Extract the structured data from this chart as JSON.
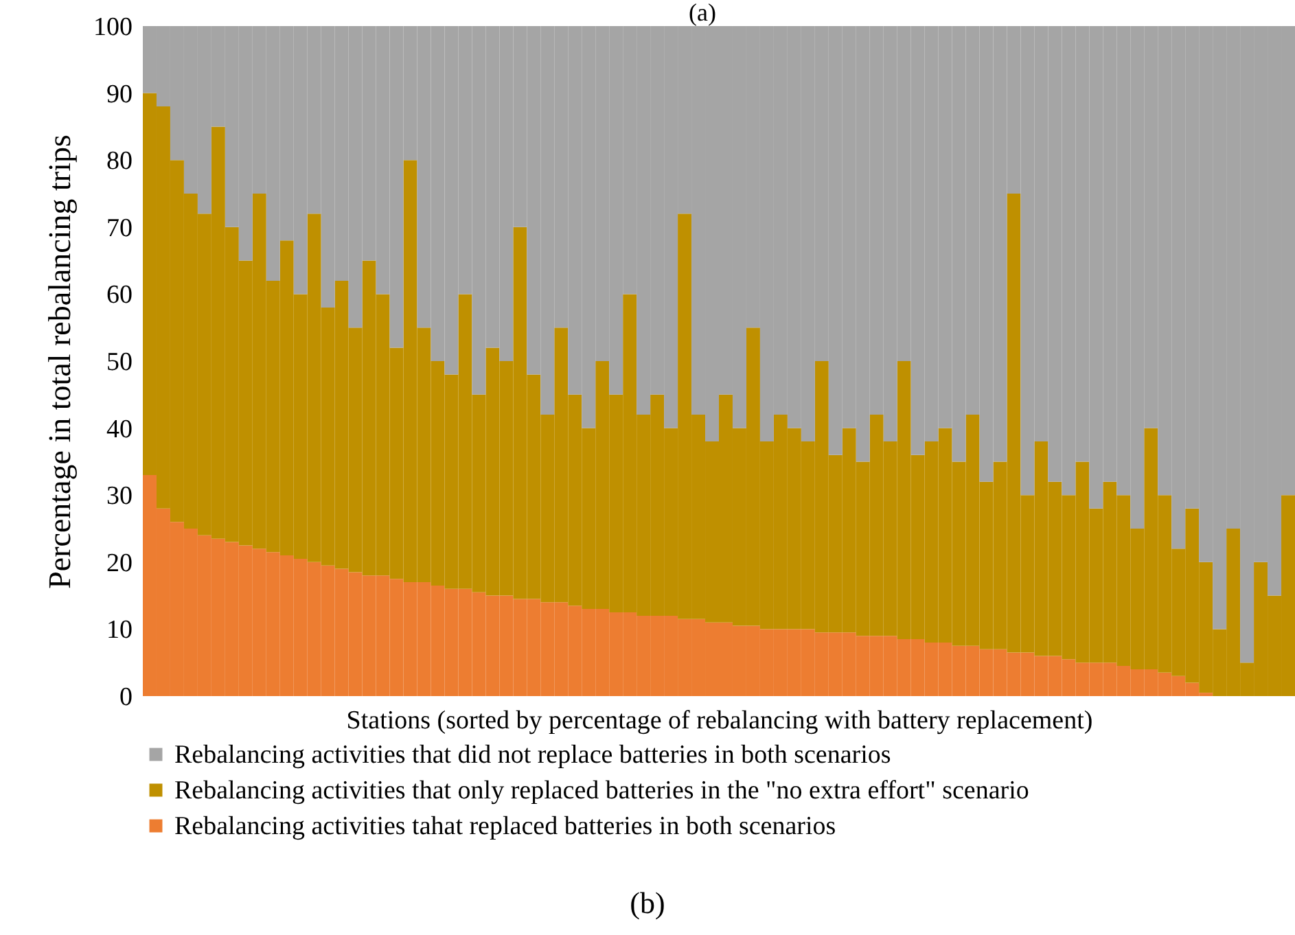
{
  "chart_data": {
    "type": "bar",
    "stacked": true,
    "xlabel": "Stations (sorted by percentage of rebalancing with battery replacement)",
    "ylabel": "Percentage in total rebalancing trips",
    "categories": [
      null,
      null,
      null,
      null,
      null,
      null,
      null,
      null,
      null,
      null,
      null,
      null,
      null,
      null,
      null,
      null,
      null,
      null,
      null,
      null,
      null,
      null,
      null,
      null,
      null,
      null,
      null,
      null,
      null,
      null,
      null,
      null,
      null,
      null,
      null,
      null,
      null,
      null,
      null,
      null,
      null,
      null,
      null,
      null,
      null,
      null,
      null,
      null,
      null,
      null,
      null,
      null,
      null,
      null,
      null,
      null,
      null,
      null,
      null,
      null,
      null,
      null,
      null,
      null,
      null,
      null,
      null,
      null,
      null,
      null,
      null,
      null,
      null,
      null,
      null,
      null,
      null,
      null,
      null,
      null,
      null,
      null,
      null,
      null
    ],
    "series": [
      {
        "name": "Rebalancing activities tahat replaced batteries in both scenarios",
        "color": "#ed7d31",
        "values": [
          33,
          28,
          26,
          25,
          24,
          23.5,
          23,
          22.5,
          22,
          21.5,
          21,
          20.5,
          20,
          19.5,
          19,
          18.5,
          18,
          18,
          17.5,
          17,
          17,
          16.5,
          16,
          16,
          15.5,
          15,
          15,
          14.5,
          14.5,
          14,
          14,
          13.5,
          13,
          13,
          12.5,
          12.5,
          12,
          12,
          12,
          11.5,
          11.5,
          11,
          11,
          10.5,
          10.5,
          10,
          10,
          10,
          10,
          9.5,
          9.5,
          9.5,
          9,
          9,
          9,
          8.5,
          8.5,
          8,
          8,
          7.5,
          7.5,
          7,
          7,
          6.5,
          6.5,
          6,
          6,
          5.5,
          5,
          5,
          5,
          4.5,
          4,
          4,
          3.5,
          3,
          2,
          0.5,
          0,
          0,
          0,
          0,
          0,
          0
        ]
      },
      {
        "name": "Rebalancing activities that only replaced batteries in the \"no extra effort\" scenario",
        "color": "#bf9000",
        "values": [
          57,
          60,
          54,
          50,
          48,
          61.5,
          47,
          42.5,
          53,
          40.5,
          47,
          39.5,
          52,
          38.5,
          43,
          36.5,
          47,
          42,
          34.5,
          63,
          38,
          33.5,
          32,
          44,
          29.5,
          37,
          35,
          55.5,
          33.5,
          28,
          41,
          31.5,
          27,
          37,
          32.5,
          47.5,
          30,
          33,
          28,
          60.5,
          30.5,
          27,
          34,
          29.5,
          44.5,
          28,
          32,
          30,
          28,
          40.5,
          26.5,
          30.5,
          26,
          33,
          29,
          41.5,
          27.5,
          30,
          32,
          27.5,
          34.5,
          25,
          28,
          68.5,
          23.5,
          32,
          26,
          24.5,
          30,
          23,
          27,
          25.5,
          21,
          36,
          26.5,
          19,
          26,
          19.5,
          10,
          25,
          5,
          20,
          15,
          30
        ]
      },
      {
        "name": "Rebalancing activities that did not replace batteries in both scenarios",
        "color": "#a5a5a5",
        "values": [
          10,
          12,
          20,
          25,
          28,
          15,
          30,
          35,
          25,
          38,
          32,
          40,
          28,
          42,
          38,
          45,
          35,
          40,
          48,
          20,
          45,
          50,
          52,
          40,
          55,
          48,
          50,
          30,
          52,
          58,
          45,
          55,
          60,
          50,
          55,
          40,
          58,
          55,
          60,
          28,
          58,
          62,
          55,
          60,
          45,
          62,
          58,
          60,
          62,
          50,
          64,
          60,
          65,
          58,
          62,
          50,
          64,
          62,
          60,
          65,
          58,
          68,
          65,
          25,
          70,
          62,
          68,
          70,
          65,
          72,
          68,
          70,
          75,
          60,
          70,
          78,
          72,
          80,
          90,
          75,
          95,
          80,
          85,
          70
        ]
      }
    ],
    "ylim": [
      0,
      100
    ],
    "yticks": [
      0,
      10,
      20,
      30,
      40,
      50,
      60,
      70,
      80,
      90,
      100
    ],
    "legend": "bottom",
    "annotations": [
      "(a)",
      "(b)"
    ]
  }
}
